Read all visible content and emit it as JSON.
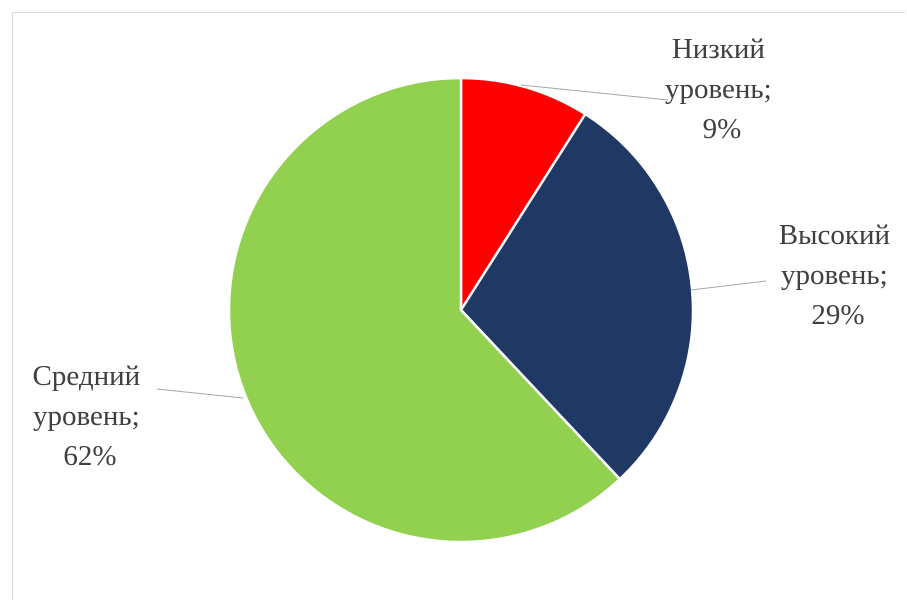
{
  "chart_data": {
    "type": "pie",
    "title": "",
    "slices": [
      {
        "category": "Низкий уровень",
        "value": 9,
        "percent_label": "9%",
        "color": "#ff0000"
      },
      {
        "category": "Высокий уровень",
        "value": 29,
        "percent_label": "29%",
        "color": "#203864"
      },
      {
        "category": "Средний уровень",
        "value": 62,
        "percent_label": "62%",
        "color": "#92d050"
      }
    ],
    "labels": [
      {
        "line1": "Низкий",
        "line2": "уровень;",
        "line3": "9%"
      },
      {
        "line1": "Высокий",
        "line2": "уровень;",
        "line3": "29%"
      },
      {
        "line1": "Средний",
        "line2": "уровень;",
        "line3": "62%"
      }
    ],
    "start_angle": "12 o'clock",
    "direction": "clockwise",
    "legend": "none",
    "data_labels": "outside with leader lines"
  }
}
